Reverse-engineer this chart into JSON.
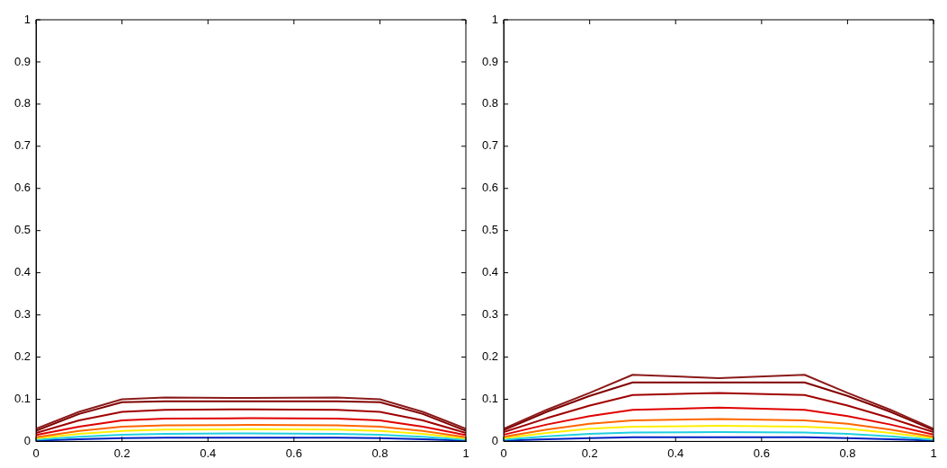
{
  "chart_data": [
    {
      "type": "line",
      "x": [
        0,
        0.1,
        0.2,
        0.3,
        0.5,
        0.7,
        0.8,
        0.9,
        1
      ],
      "xlim": [
        0,
        1
      ],
      "ylim": [
        0,
        1
      ],
      "xticks": [
        0,
        0.2,
        0.4,
        0.6,
        0.8,
        1
      ],
      "yticks": [
        0,
        0.1,
        0.2,
        0.3,
        0.4,
        0.5,
        0.6,
        0.7,
        0.8,
        0.9,
        1
      ],
      "grid": false,
      "legend": false,
      "marker": "none",
      "line_style": "solid",
      "series": [
        {
          "color": "#8b1a1a",
          "values": [
            0.03,
            0.07,
            0.1,
            0.104,
            0.103,
            0.104,
            0.1,
            0.07,
            0.03
          ]
        },
        {
          "color": "#800000",
          "values": [
            0.025,
            0.065,
            0.093,
            0.095,
            0.095,
            0.095,
            0.093,
            0.065,
            0.025
          ]
        },
        {
          "color": "#a00000",
          "values": [
            0.02,
            0.05,
            0.07,
            0.075,
            0.076,
            0.075,
            0.07,
            0.05,
            0.02
          ]
        },
        {
          "color": "#e00000",
          "values": [
            0.015,
            0.035,
            0.05,
            0.054,
            0.055,
            0.054,
            0.05,
            0.035,
            0.015
          ]
        },
        {
          "color": "#ff6600",
          "values": [
            0.01,
            0.025,
            0.035,
            0.038,
            0.039,
            0.038,
            0.035,
            0.025,
            0.01
          ]
        },
        {
          "color": "#ffee00",
          "values": [
            0.007,
            0.018,
            0.025,
            0.028,
            0.029,
            0.028,
            0.025,
            0.018,
            0.007
          ]
        },
        {
          "color": "#20d0e0",
          "values": [
            0.004,
            0.011,
            0.016,
            0.018,
            0.019,
            0.018,
            0.016,
            0.011,
            0.004
          ]
        },
        {
          "color": "#0020c0",
          "values": [
            0.002,
            0.005,
            0.008,
            0.009,
            0.009,
            0.009,
            0.008,
            0.005,
            0.002
          ]
        }
      ]
    },
    {
      "type": "line",
      "x": [
        0,
        0.1,
        0.2,
        0.3,
        0.5,
        0.7,
        0.8,
        0.9,
        1
      ],
      "xlim": [
        0,
        1
      ],
      "ylim": [
        0,
        1
      ],
      "xticks": [
        0,
        0.2,
        0.4,
        0.6,
        0.8,
        1
      ],
      "yticks": [
        0,
        0.1,
        0.2,
        0.3,
        0.4,
        0.5,
        0.6,
        0.7,
        0.8,
        0.9,
        1
      ],
      "grid": false,
      "legend": false,
      "marker": "none",
      "line_style": "solid",
      "series": [
        {
          "color": "#8b1a1a",
          "values": [
            0.03,
            0.075,
            0.115,
            0.158,
            0.15,
            0.158,
            0.115,
            0.075,
            0.03
          ]
        },
        {
          "color": "#800000",
          "values": [
            0.027,
            0.07,
            0.108,
            0.14,
            0.14,
            0.14,
            0.108,
            0.07,
            0.027
          ]
        },
        {
          "color": "#a00000",
          "values": [
            0.022,
            0.055,
            0.085,
            0.11,
            0.115,
            0.11,
            0.085,
            0.055,
            0.022
          ]
        },
        {
          "color": "#e00000",
          "values": [
            0.016,
            0.04,
            0.06,
            0.075,
            0.08,
            0.075,
            0.06,
            0.04,
            0.016
          ]
        },
        {
          "color": "#ff6600",
          "values": [
            0.011,
            0.028,
            0.042,
            0.05,
            0.053,
            0.05,
            0.042,
            0.028,
            0.011
          ]
        },
        {
          "color": "#ffee00",
          "values": [
            0.008,
            0.02,
            0.03,
            0.035,
            0.037,
            0.035,
            0.03,
            0.02,
            0.008
          ]
        },
        {
          "color": "#20d0e0",
          "values": [
            0.004,
            0.012,
            0.018,
            0.021,
            0.022,
            0.021,
            0.018,
            0.012,
            0.004
          ]
        },
        {
          "color": "#0020c0",
          "values": [
            0.002,
            0.005,
            0.008,
            0.01,
            0.01,
            0.01,
            0.008,
            0.005,
            0.002
          ]
        }
      ]
    }
  ]
}
